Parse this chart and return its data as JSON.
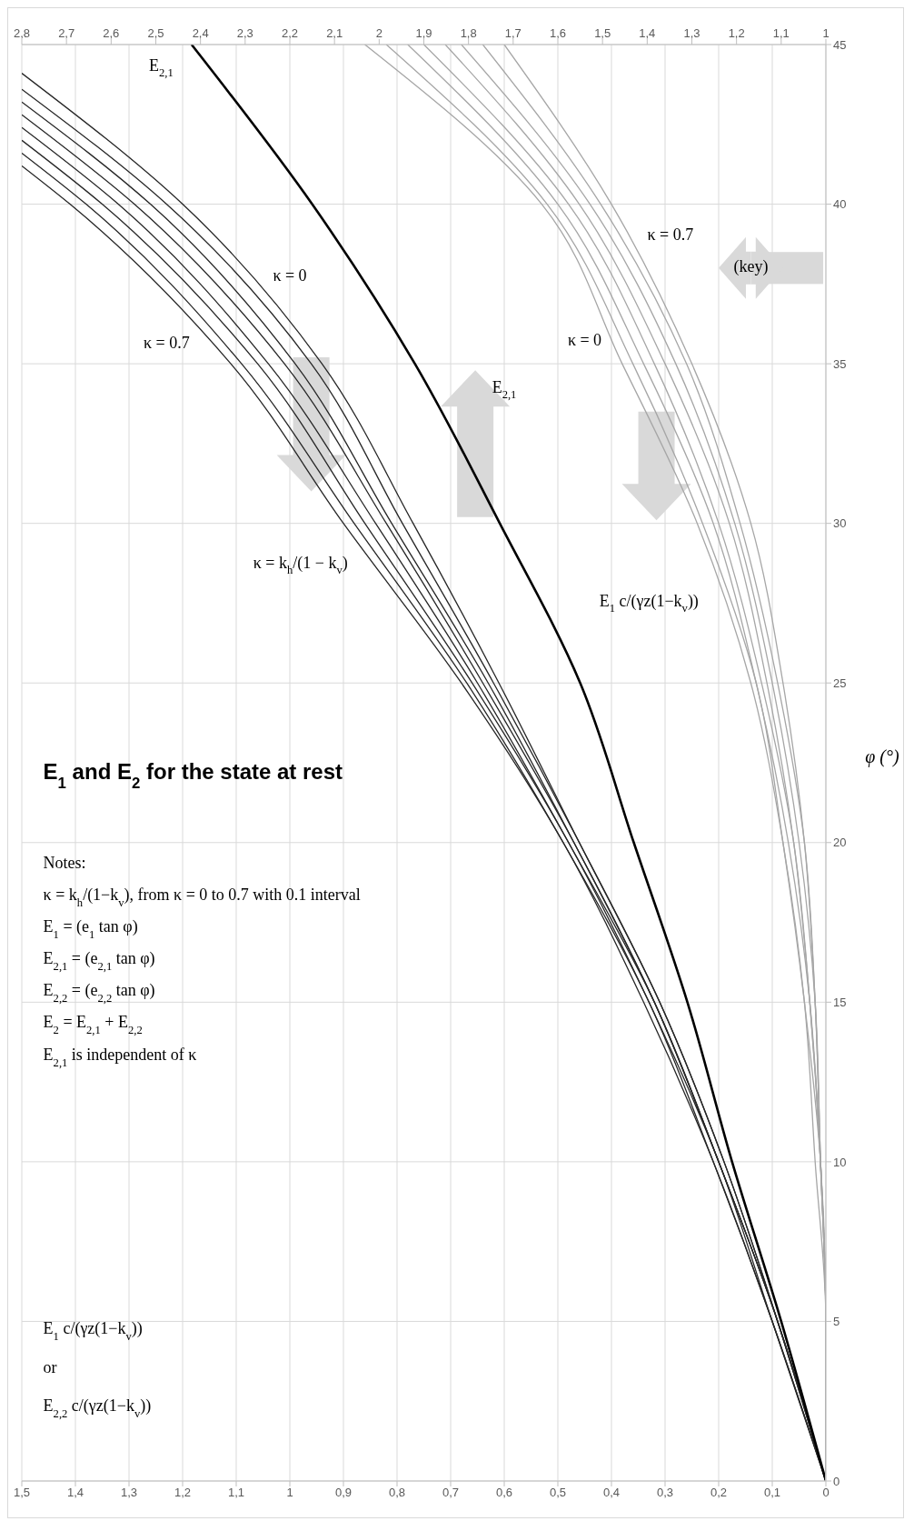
{
  "chart_data": {
    "type": "line",
    "title": "E$_{1}$ and E$_{2}$ for the state at rest",
    "ylabel": "φ (°)",
    "ylim": [
      0,
      45
    ],
    "yticks": [
      0,
      5,
      10,
      15,
      20,
      25,
      30,
      35,
      40,
      45
    ],
    "xlim": [
      1.5,
      0
    ],
    "xticks": [
      0,
      {
        "value": 0.1,
        "label": "0,1"
      },
      {
        "value": 0.2,
        "label": "0,2"
      },
      {
        "value": 0.3,
        "label": "0,3"
      },
      {
        "value": 0.4,
        "label": "0,4"
      },
      {
        "value": 0.5,
        "label": "0,5"
      },
      {
        "value": 0.6,
        "label": "0,6"
      },
      {
        "value": 0.7,
        "label": "0,7"
      },
      {
        "value": 0.8,
        "label": "0,8"
      },
      {
        "value": 0.9,
        "label": "0,9"
      },
      1,
      {
        "value": 1.1,
        "label": "1,1"
      },
      {
        "value": 1.2,
        "label": "1,2"
      },
      {
        "value": 1.3,
        "label": "1,3"
      },
      {
        "value": 1.4,
        "label": "1,4"
      },
      {
        "value": 1.5,
        "label": "1,5"
      }
    ],
    "x2lim": [
      2.8,
      1
    ],
    "x2ticks": [
      1,
      {
        "value": 1.1,
        "label": "1,1"
      },
      {
        "value": 1.2,
        "label": "1,2"
      },
      {
        "value": 1.3,
        "label": "1,3"
      },
      {
        "value": 1.4,
        "label": "1,4"
      },
      {
        "value": 1.5,
        "label": "1,5"
      },
      {
        "value": 1.6,
        "label": "1,6"
      },
      {
        "value": 1.7,
        "label": "1,7"
      },
      {
        "value": 1.8,
        "label": "1,8"
      },
      {
        "value": 1.9,
        "label": "1,9"
      },
      2,
      {
        "value": 2.1,
        "label": "2,1"
      },
      {
        "value": 2.2,
        "label": "2,2"
      },
      {
        "value": 2.3,
        "label": "2,3"
      },
      {
        "value": 2.4,
        "label": "2,4"
      },
      {
        "value": 2.5,
        "label": "2,5"
      },
      {
        "value": 2.6,
        "label": "2,6"
      },
      {
        "value": 2.7,
        "label": "2,7"
      },
      {
        "value": 2.8,
        "label": "2,8"
      }
    ],
    "grid": true,
    "marker": "none",
    "series": [
      {
        "color": "#262626",
        "x": [
          0,
          0.09,
          0.19,
          0.31,
          0.46,
          0.61,
          0.77,
          0.94,
          1.2,
          1.5
        ],
        "values": [
          0,
          5,
          10,
          15,
          20,
          25,
          30,
          35,
          40,
          44.1
        ]
      },
      {
        "color": "#262626",
        "x": [
          0,
          0.09,
          0.19,
          0.31,
          0.46,
          0.62,
          0.79,
          0.96,
          1.23,
          1.5
        ],
        "values": [
          0,
          5,
          10,
          15,
          20,
          25,
          30,
          35,
          40,
          43.6
        ]
      },
      {
        "color": "#262626",
        "x": [
          0,
          0.09,
          0.2,
          0.32,
          0.47,
          0.63,
          0.81,
          0.99,
          1.26,
          1.5
        ],
        "values": [
          0,
          5,
          10,
          15,
          20,
          25,
          30,
          35,
          40,
          43.2
        ]
      },
      {
        "color": "#262626",
        "x": [
          0,
          0.09,
          0.2,
          0.32,
          0.47,
          0.64,
          0.82,
          1.01,
          1.29,
          1.5
        ],
        "values": [
          0,
          5,
          10,
          15,
          20,
          25,
          30,
          35,
          40,
          42.8
        ]
      },
      {
        "color": "#262626",
        "x": [
          0,
          0.09,
          0.2,
          0.32,
          0.48,
          0.65,
          0.84,
          1.04,
          1.32,
          1.5
        ],
        "values": [
          0,
          5,
          10,
          15,
          20,
          25,
          30,
          35,
          40,
          42.4
        ]
      },
      {
        "color": "#262626",
        "x": [
          0,
          0.1,
          0.2,
          0.33,
          0.48,
          0.66,
          0.86,
          1.06,
          1.35,
          1.5
        ],
        "values": [
          0,
          5,
          10,
          15,
          20,
          25,
          30,
          35,
          40,
          42
        ]
      },
      {
        "color": "#262626",
        "x": [
          0,
          0.1,
          0.21,
          0.33,
          0.49,
          0.67,
          0.88,
          1.09,
          1.38,
          1.5
        ],
        "values": [
          0,
          5,
          10,
          15,
          20,
          25,
          30,
          35,
          40,
          41.6
        ]
      },
      {
        "color": "#262626",
        "x": [
          0,
          0.1,
          0.21,
          0.34,
          0.49,
          0.68,
          0.9,
          1.11,
          1.41,
          1.5
        ],
        "values": [
          0,
          5,
          10,
          15,
          20,
          25,
          30,
          35,
          40,
          41.2
        ]
      },
      {
        "color": "#000000",
        "axis": "x2",
        "x": [
          1,
          1.1,
          1.21,
          1.31,
          1.43,
          1.55,
          1.73,
          1.92,
          2.15,
          2.42
        ],
        "values": [
          0,
          5,
          10,
          15,
          20,
          25,
          30,
          35,
          40,
          45
        ]
      },
      {
        "color": "#a6a6a6",
        "x": [
          0,
          0,
          0.02,
          0.04,
          0.08,
          0.14,
          0.24,
          0.38,
          0.53,
          0.86
        ],
        "values": [
          0,
          5,
          10,
          15,
          20,
          25,
          30,
          35,
          40,
          45
        ]
      },
      {
        "color": "#a6a6a6",
        "x": [
          0,
          0,
          0.01,
          0.04,
          0.08,
          0.13,
          0.23,
          0.36,
          0.52,
          0.82
        ],
        "values": [
          0,
          5,
          10,
          15,
          20,
          25,
          30,
          35,
          40,
          45
        ]
      },
      {
        "color": "#a6a6a6",
        "x": [
          0,
          0,
          0.01,
          0.03,
          0.07,
          0.13,
          0.21,
          0.34,
          0.5,
          0.78
        ],
        "values": [
          0,
          5,
          10,
          15,
          20,
          25,
          30,
          35,
          40,
          45
        ]
      },
      {
        "color": "#a6a6a6",
        "x": [
          0,
          0,
          0.01,
          0.03,
          0.06,
          0.12,
          0.2,
          0.32,
          0.48,
          0.75
        ],
        "values": [
          0,
          5,
          10,
          15,
          20,
          25,
          30,
          35,
          40,
          45
        ]
      },
      {
        "color": "#a6a6a6",
        "x": [
          0,
          0,
          0.01,
          0.03,
          0.06,
          0.11,
          0.18,
          0.3,
          0.46,
          0.71
        ],
        "values": [
          0,
          5,
          10,
          15,
          20,
          25,
          30,
          35,
          40,
          45
        ]
      },
      {
        "color": "#a6a6a6",
        "x": [
          0,
          0,
          0.01,
          0.02,
          0.05,
          0.1,
          0.17,
          0.28,
          0.44,
          0.68
        ],
        "values": [
          0,
          5,
          10,
          15,
          20,
          25,
          30,
          35,
          40,
          45
        ]
      },
      {
        "color": "#a6a6a6",
        "x": [
          0,
          0,
          0.01,
          0.02,
          0.04,
          0.09,
          0.16,
          0.26,
          0.42,
          0.64
        ],
        "values": [
          0,
          5,
          10,
          15,
          20,
          25,
          30,
          35,
          40,
          45
        ]
      },
      {
        "color": "#a6a6a6",
        "x": [
          0,
          0,
          0.01,
          0.02,
          0.04,
          0.08,
          0.14,
          0.25,
          0.4,
          0.6
        ],
        "values": [
          0,
          5,
          10,
          15,
          20,
          25,
          30,
          35,
          40,
          45
        ]
      }
    ],
    "annotations": [
      "E$_{1}$ c/(γz(1−k$_{v}$))",
      "or",
      "E$_{2,2}$ c/(γz(1−k$_{v}$))",
      "Notes:",
      "κ = k$_{h}$/(1−k$_{v}$), from κ = 0 to 0.7 with 0.1 interval",
      "E$_{1}$ = (e$_{1}$ tan φ)",
      "E$_{2,1}$ = (e$_{2,1}$ tan φ)",
      "E$_{2,2}$ = (e$_{2,2}$ tan φ)",
      "E$_{2}$ = E$_{2,1}$ + E$_{2,2}$",
      "E$_{2,1}$ is independent of κ",
      "κ = 0.7",
      "κ = 0",
      "κ = k$_{h}$/(1 − k$_{v}$)",
      "E$_{2,1}$",
      "E$_{2,1}$",
      "E$_{1}$ c/(γz(1−k$_{v}$))",
      "κ = 0",
      "κ = 0.7",
      "(key)"
    ]
  }
}
